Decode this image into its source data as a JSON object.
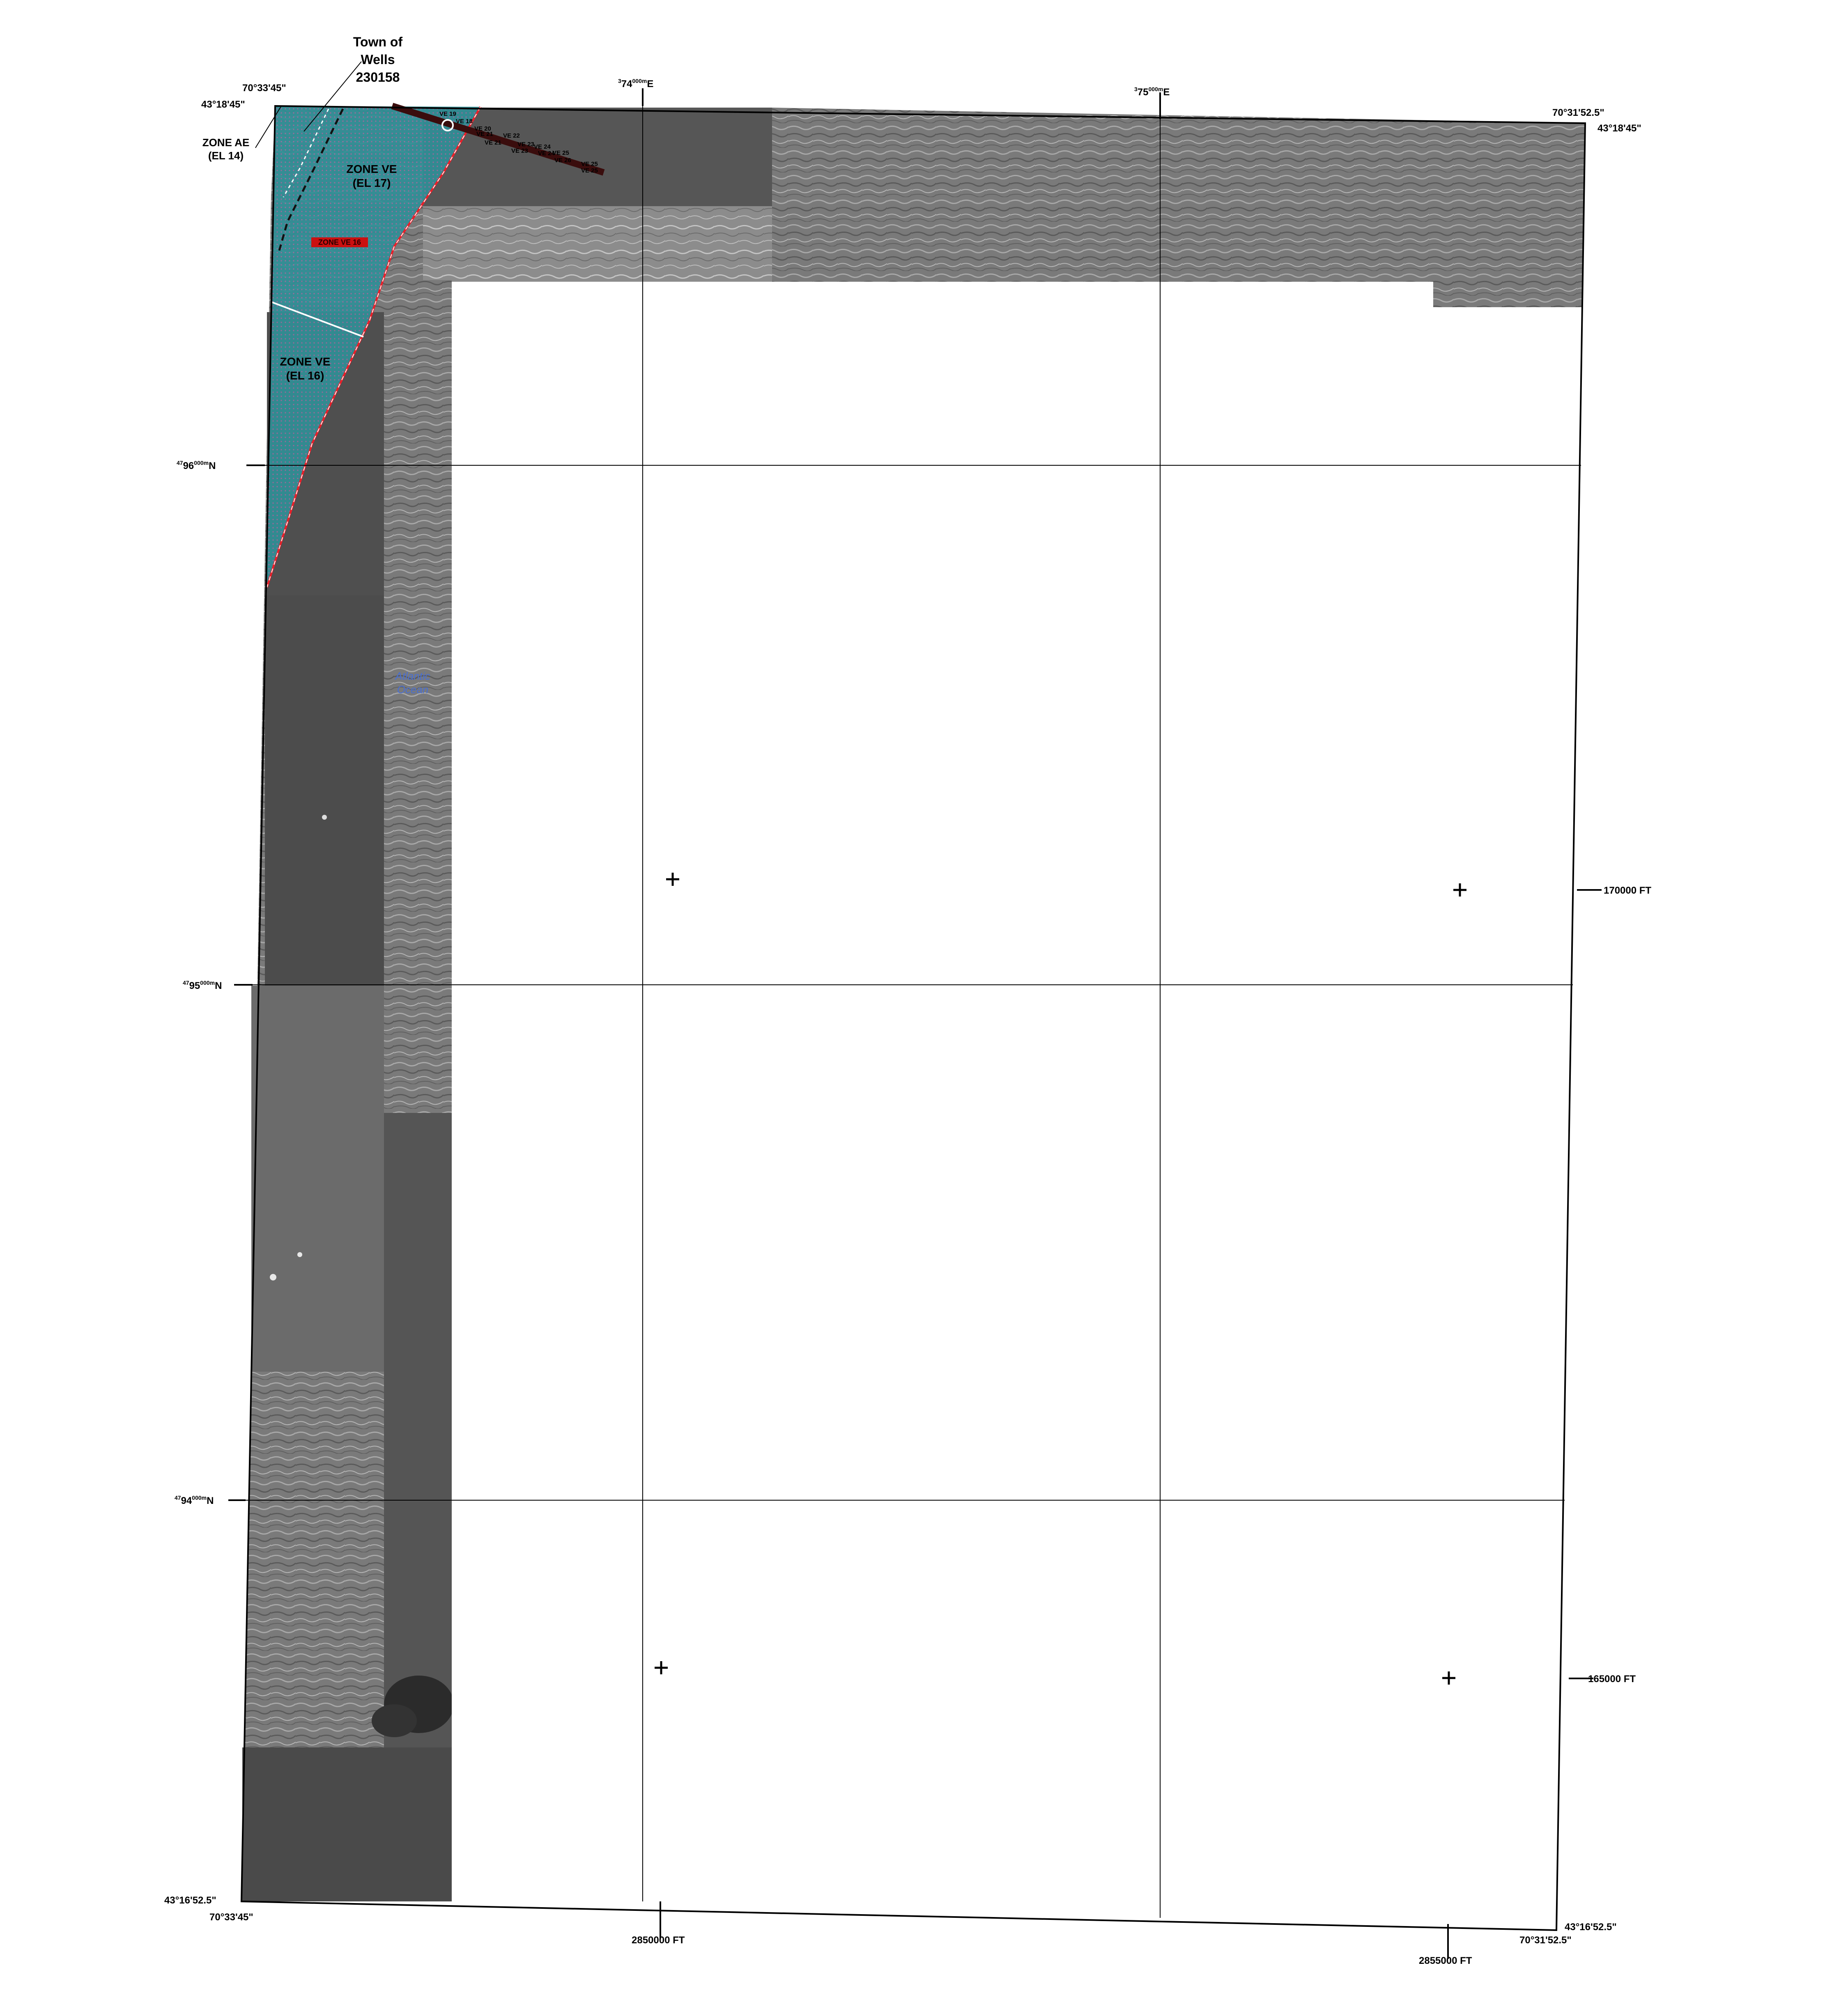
{
  "map": {
    "corners": {
      "top_left": {
        "lat": "43°18'45\"",
        "lon": "70°33'45\""
      },
      "top_right": {
        "lon": "70°31'52.5\"",
        "lat": "43°18'45\""
      },
      "bottom_left": {
        "lat": "43°16'52.5\"",
        "lon": "70°33'45\""
      },
      "bottom_right": {
        "lat": "43°16'52.5\"",
        "lon": "70°31'52.5\""
      }
    },
    "utm_easting": [
      {
        "sup": "3",
        "big": "74",
        "small": "000m",
        "suffix": "E"
      },
      {
        "sup": "3",
        "big": "75",
        "small": "000m",
        "suffix": "E"
      }
    ],
    "utm_northing": [
      {
        "sup": "47",
        "big": "96",
        "small": "000m",
        "suffix": "N"
      },
      {
        "sup": "47",
        "big": "95",
        "small": "000m",
        "suffix": "N"
      },
      {
        "sup": "47",
        "big": "94",
        "small": "000m",
        "suffix": "N"
      }
    ],
    "state_plane_easting": [
      "2850000 FT",
      "2855000 FT"
    ],
    "state_plane_northing": [
      "170000 FT",
      "165000 FT"
    ],
    "community": {
      "line1": "Town of",
      "line2": "Wells",
      "line3": "230158"
    },
    "zones": {
      "ae_line1": "ZONE AE",
      "ae_line2": "(EL 14)",
      "ve17_line1": "ZONE VE",
      "ve17_line2": "(EL 17)",
      "ve16_red": "ZONE VE 16",
      "ve16_line1": "ZONE VE",
      "ve16_line2": "(EL 16)"
    },
    "water_body": {
      "line1": "Atlantic",
      "line2": "Ocean"
    },
    "transect_labels": [
      "VE 19",
      "VE 18",
      "VE 20",
      "VE 21",
      "VE 22",
      "VE 21",
      "VE 23",
      "VE 24",
      "VE 23",
      "VE 24",
      "VE 25",
      "VE 26",
      "VE 25",
      "VE 25"
    ],
    "colors": {
      "flood_zone": "#2f8f96",
      "flood_zone_boundary": "#e8202a",
      "imagery_dark": "#4f4f4f",
      "imagery_mid": "#6b6b6b"
    }
  }
}
